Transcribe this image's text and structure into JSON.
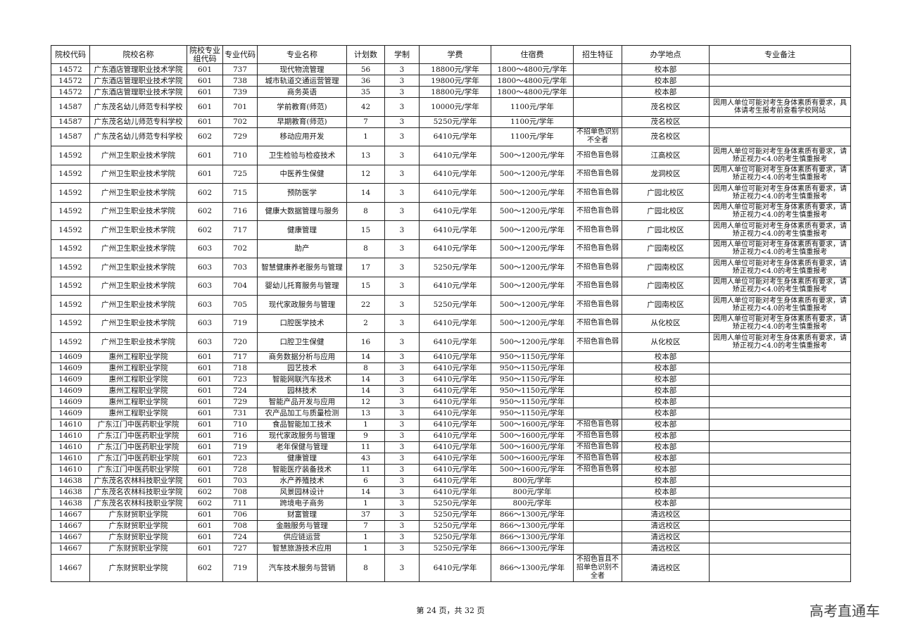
{
  "headers": [
    "院校代码",
    "院校名称",
    "院校专业组代码",
    "专业代码",
    "专业名称",
    "计划数",
    "学制",
    "学费",
    "住宿费",
    "招生特征",
    "办学地点",
    "专业备注"
  ],
  "rows": [
    [
      "14572",
      "广东酒店管理职业技术学院",
      "601",
      "737",
      "现代物流管理",
      "56",
      "3",
      "18800元/学年",
      "1800～4800元/学年",
      "",
      "校本部",
      ""
    ],
    [
      "14572",
      "广东酒店管理职业技术学院",
      "601",
      "738",
      "城市轨道交通运营管理",
      "36",
      "3",
      "19800元/学年",
      "1800～4800元/学年",
      "",
      "校本部",
      ""
    ],
    [
      "14572",
      "广东酒店管理职业技术学院",
      "601",
      "739",
      "商务英语",
      "35",
      "3",
      "18800元/学年",
      "1800～4800元/学年",
      "",
      "校本部",
      ""
    ],
    [
      "14587",
      "广东茂名幼儿师范专科学校",
      "601",
      "701",
      "学前教育(师范)",
      "42",
      "3",
      "10000元/学年",
      "1100元/学年",
      "",
      "茂名校区",
      "因用人单位可能对考生身体素质有要求，具体请考生报考前查看学校网站"
    ],
    [
      "14587",
      "广东茂名幼儿师范专科学校",
      "601",
      "702",
      "早期教育(师范)",
      "7",
      "3",
      "5250元/学年",
      "1100元/学年",
      "",
      "茂名校区",
      ""
    ],
    [
      "14587",
      "广东茂名幼儿师范专科学校",
      "602",
      "729",
      "移动应用开发",
      "1",
      "3",
      "6410元/学年",
      "1100元/学年",
      "不招单色识别不全者",
      "茂名校区",
      ""
    ],
    [
      "14592",
      "广州卫生职业技术学院",
      "601",
      "710",
      "卫生检验与检疫技术",
      "13",
      "3",
      "6410元/学年",
      "500～1200元/学年",
      "不招色盲色弱",
      "江高校区",
      "因用人单位可能对考生身体素质有要求，请矫正视力<4.0的考生慎重报考"
    ],
    [
      "14592",
      "广州卫生职业技术学院",
      "601",
      "725",
      "中医养生保健",
      "12",
      "3",
      "6410元/学年",
      "500～1200元/学年",
      "不招色盲色弱",
      "龙洞校区",
      "因用人单位可能对考生身体素质有要求，请矫正视力<4.0的考生慎重报考"
    ],
    [
      "14592",
      "广州卫生职业技术学院",
      "602",
      "715",
      "预防医学",
      "14",
      "3",
      "6410元/学年",
      "500～1200元/学年",
      "不招色盲色弱",
      "广园北校区",
      "因用人单位可能对考生身体素质有要求，请矫正视力<4.0的考生慎重报考"
    ],
    [
      "14592",
      "广州卫生职业技术学院",
      "602",
      "716",
      "健康大数据管理与服务",
      "8",
      "3",
      "6410元/学年",
      "500～1200元/学年",
      "不招色盲色弱",
      "广园北校区",
      "因用人单位可能对考生身体素质有要求，请矫正视力<4.0的考生慎重报考"
    ],
    [
      "14592",
      "广州卫生职业技术学院",
      "602",
      "717",
      "健康管理",
      "15",
      "3",
      "6410元/学年",
      "500～1200元/学年",
      "不招色盲色弱",
      "广园北校区",
      "因用人单位可能对考生身体素质有要求，请矫正视力<4.0的考生慎重报考"
    ],
    [
      "14592",
      "广州卫生职业技术学院",
      "603",
      "702",
      "助产",
      "8",
      "3",
      "6410元/学年",
      "500～1200元/学年",
      "不招色盲色弱",
      "广园南校区",
      "因用人单位可能对考生身体素质有要求，请矫正视力<4.0的考生慎重报考"
    ],
    [
      "14592",
      "广州卫生职业技术学院",
      "603",
      "703",
      "智慧健康养老服务与管理",
      "17",
      "3",
      "5250元/学年",
      "500～1200元/学年",
      "不招色盲色弱",
      "广园南校区",
      "因用人单位可能对考生身体素质有要求，请矫正视力<4.0的考生慎重报考"
    ],
    [
      "14592",
      "广州卫生职业技术学院",
      "603",
      "704",
      "婴幼儿托育服务与管理",
      "15",
      "3",
      "6410元/学年",
      "500～1200元/学年",
      "不招色盲色弱",
      "广园南校区",
      "因用人单位可能对考生身体素质有要求，请矫正视力<4.0的考生慎重报考"
    ],
    [
      "14592",
      "广州卫生职业技术学院",
      "603",
      "705",
      "现代家政服务与管理",
      "22",
      "3",
      "5250元/学年",
      "500～1200元/学年",
      "不招色盲色弱",
      "广园南校区",
      "因用人单位可能对考生身体素质有要求，请矫正视力<4.0的考生慎重报考"
    ],
    [
      "14592",
      "广州卫生职业技术学院",
      "603",
      "719",
      "口腔医学技术",
      "2",
      "3",
      "6410元/学年",
      "500～1200元/学年",
      "不招色盲色弱",
      "从化校区",
      "因用人单位可能对考生身体素质有要求，请矫正视力<4.0的考生慎重报考"
    ],
    [
      "14592",
      "广州卫生职业技术学院",
      "603",
      "720",
      "口腔卫生保健",
      "16",
      "3",
      "6410元/学年",
      "500～1200元/学年",
      "不招色盲色弱",
      "从化校区",
      "因用人单位可能对考生身体素质有要求，请矫正视力<4.0的考生慎重报考"
    ],
    [
      "14609",
      "惠州工程职业学院",
      "601",
      "717",
      "商务数据分析与应用",
      "14",
      "3",
      "6410元/学年",
      "950～1150元/学年",
      "",
      "校本部",
      ""
    ],
    [
      "14609",
      "惠州工程职业学院",
      "601",
      "718",
      "园艺技术",
      "8",
      "3",
      "6410元/学年",
      "950～1150元/学年",
      "",
      "校本部",
      ""
    ],
    [
      "14609",
      "惠州工程职业学院",
      "601",
      "723",
      "智能网联汽车技术",
      "14",
      "3",
      "6410元/学年",
      "950～1150元/学年",
      "",
      "校本部",
      ""
    ],
    [
      "14609",
      "惠州工程职业学院",
      "601",
      "724",
      "园林技术",
      "14",
      "3",
      "6410元/学年",
      "950～1150元/学年",
      "",
      "校本部",
      ""
    ],
    [
      "14609",
      "惠州工程职业学院",
      "601",
      "729",
      "智能产品开发与应用",
      "12",
      "3",
      "6410元/学年",
      "950～1150元/学年",
      "",
      "校本部",
      ""
    ],
    [
      "14609",
      "惠州工程职业学院",
      "601",
      "731",
      "农产品加工与质量检测",
      "13",
      "3",
      "6410元/学年",
      "950～1150元/学年",
      "",
      "校本部",
      ""
    ],
    [
      "14610",
      "广东江门中医药职业学院",
      "601",
      "710",
      "食品智能加工技术",
      "1",
      "3",
      "6410元/学年",
      "500～1600元/学年",
      "不招色盲色弱",
      "校本部",
      ""
    ],
    [
      "14610",
      "广东江门中医药职业学院",
      "601",
      "716",
      "现代家政服务与管理",
      "9",
      "3",
      "6410元/学年",
      "500～1600元/学年",
      "不招色盲色弱",
      "校本部",
      ""
    ],
    [
      "14610",
      "广东江门中医药职业学院",
      "601",
      "719",
      "老年保健与管理",
      "11",
      "3",
      "6410元/学年",
      "500～1600元/学年",
      "不招色盲色弱",
      "校本部",
      ""
    ],
    [
      "14610",
      "广东江门中医药职业学院",
      "601",
      "723",
      "健康管理",
      "43",
      "3",
      "6410元/学年",
      "500～1600元/学年",
      "不招色盲色弱",
      "校本部",
      ""
    ],
    [
      "14610",
      "广东江门中医药职业学院",
      "601",
      "728",
      "智能医疗装备技术",
      "11",
      "3",
      "6410元/学年",
      "500～1600元/学年",
      "不招色盲色弱",
      "校本部",
      ""
    ],
    [
      "14638",
      "广东茂名农林科技职业学院",
      "601",
      "703",
      "水产养殖技术",
      "6",
      "3",
      "6410元/学年",
      "800元/学年",
      "",
      "校本部",
      ""
    ],
    [
      "14638",
      "广东茂名农林科技职业学院",
      "602",
      "708",
      "风景园林设计",
      "14",
      "3",
      "6410元/学年",
      "800元/学年",
      "",
      "校本部",
      ""
    ],
    [
      "14638",
      "广东茂名农林科技职业学院",
      "602",
      "711",
      "跨境电子商务",
      "1",
      "3",
      "5250元/学年",
      "800元/学年",
      "",
      "校本部",
      ""
    ],
    [
      "14667",
      "广东财贸职业学院",
      "601",
      "706",
      "财富管理",
      "37",
      "3",
      "5250元/学年",
      "866～1300元/学年",
      "",
      "清远校区",
      ""
    ],
    [
      "14667",
      "广东财贸职业学院",
      "601",
      "708",
      "金融服务与管理",
      "7",
      "3",
      "5250元/学年",
      "866～1300元/学年",
      "",
      "清远校区",
      ""
    ],
    [
      "14667",
      "广东财贸职业学院",
      "601",
      "724",
      "供应链运营",
      "1",
      "3",
      "5250元/学年",
      "866～1300元/学年",
      "",
      "清远校区",
      ""
    ],
    [
      "14667",
      "广东财贸职业学院",
      "601",
      "727",
      "智慧旅游技术应用",
      "1",
      "3",
      "5250元/学年",
      "866～1300元/学年",
      "",
      "清远校区",
      ""
    ],
    [
      "14667",
      "广东财贸职业学院",
      "602",
      "719",
      "汽车技术服务与营销",
      "8",
      "3",
      "6410元/学年",
      "866～1300元/学年",
      "不招色盲且不招单色识别不全者",
      "清远校区",
      ""
    ]
  ],
  "footer": {
    "page": "第 24 页，共 32 页",
    "brand": "高考直通车"
  }
}
